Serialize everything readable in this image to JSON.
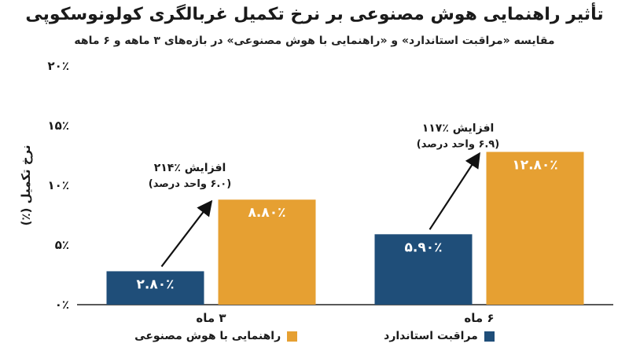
{
  "chart_data": {
    "type": "bar",
    "title": "تأثیر راهنمایی هوش مصنوعی بر نرخ تکمیل غربالگری کولونوسکوپی",
    "subtitle": "مقایسه «مراقبت استاندارد» و «راهنمایی با هوش مصنوعی» در بازه‌های ۳ ماهه و ۶ ماهه",
    "ylabel": "نرخ تکمیل (٪)",
    "xlabel": "",
    "ylim": [
      0,
      20
    ],
    "yticks": [
      0,
      5,
      10,
      15,
      20
    ],
    "ytick_labels": [
      "۰٪",
      "۵٪",
      "۱۰٪",
      "۱۵٪",
      "۲۰٪"
    ],
    "categories": [
      "۳ ماه",
      "۶ ماه"
    ],
    "series": [
      {
        "name": "مراقبت استاندارد",
        "color": "#1f4e79",
        "values": [
          2.8,
          5.9
        ],
        "labels": [
          "۲.۸۰٪",
          "۵.۹۰٪"
        ]
      },
      {
        "name": "راهنمایی با هوش مصنوعی",
        "color": "#e6a032",
        "values": [
          8.8,
          12.8
        ],
        "labels": [
          "۸.۸۰٪",
          "۱۲.۸۰٪"
        ]
      }
    ],
    "annotations": [
      {
        "category": "۳ ماه",
        "line1": "افزایش ٪۲۱۴",
        "line2": "(۶.۰ واحد درصد)"
      },
      {
        "category": "۶ ماه",
        "line1": "افزایش ٪۱۱۷",
        "line2": "(۶.۹ واحد درصد)"
      }
    ],
    "grid": false,
    "legend_position": "bottom"
  }
}
